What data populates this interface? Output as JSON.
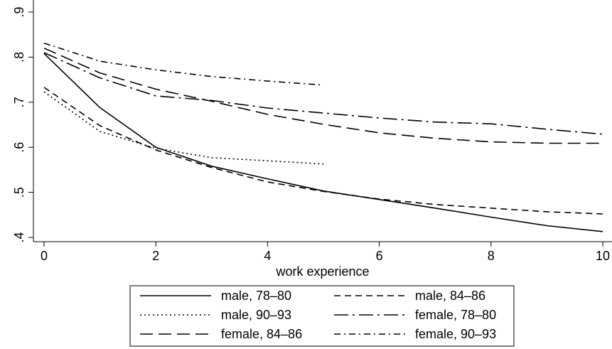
{
  "chart_data": {
    "type": "line",
    "xlabel": "work experience",
    "ylabel": "",
    "xlim": [
      0,
      10
    ],
    "ylim": [
      0.4,
      0.9
    ],
    "xticks": [
      0,
      2,
      4,
      6,
      8,
      10
    ],
    "xtick_labels": [
      "0",
      "2",
      "4",
      "6",
      "8",
      "10"
    ],
    "yticks": [
      0.4,
      0.5,
      0.6,
      0.7,
      0.8,
      0.9
    ],
    "ytick_labels": [
      ".4",
      ".5",
      ".6",
      ".7",
      ".8",
      ".9"
    ],
    "grid": false,
    "legend_position": "bottom",
    "series": [
      {
        "name": "male, 78–80",
        "style": "solid",
        "x": [
          0,
          1,
          2,
          3,
          4,
          5,
          6,
          7,
          8,
          9,
          10
        ],
        "y": [
          0.808,
          0.688,
          0.6,
          0.558,
          0.53,
          0.503,
          0.484,
          0.465,
          0.445,
          0.426,
          0.413
        ]
      },
      {
        "name": "male, 84–86",
        "style": "dash",
        "x": [
          0,
          1,
          2,
          3,
          4,
          5,
          6,
          7,
          8,
          9,
          10
        ],
        "y": [
          0.733,
          0.648,
          0.594,
          0.555,
          0.523,
          0.502,
          0.485,
          0.473,
          0.465,
          0.457,
          0.452
        ]
      },
      {
        "name": "male, 90–93",
        "style": "dot",
        "x": [
          0,
          1,
          2,
          3,
          4,
          5
        ],
        "y": [
          0.723,
          0.635,
          0.598,
          0.577,
          0.57,
          0.563
        ]
      },
      {
        "name": "female, 78–80",
        "style": "longdash-dot",
        "x": [
          0,
          1,
          2,
          3,
          4,
          5,
          6,
          7,
          8,
          9,
          10
        ],
        "y": [
          0.81,
          0.754,
          0.714,
          0.704,
          0.687,
          0.676,
          0.665,
          0.656,
          0.652,
          0.64,
          0.629
        ]
      },
      {
        "name": "female, 84–86",
        "style": "longdash",
        "x": [
          0,
          1,
          2,
          3,
          4,
          5,
          6,
          7,
          8,
          9,
          10
        ],
        "y": [
          0.82,
          0.765,
          0.729,
          0.702,
          0.673,
          0.651,
          0.632,
          0.62,
          0.612,
          0.609,
          0.609
        ]
      },
      {
        "name": "female, 90–93",
        "style": "dash-dot",
        "x": [
          0,
          1,
          2,
          3,
          4,
          5
        ],
        "y": [
          0.831,
          0.791,
          0.772,
          0.757,
          0.747,
          0.738
        ]
      }
    ]
  }
}
